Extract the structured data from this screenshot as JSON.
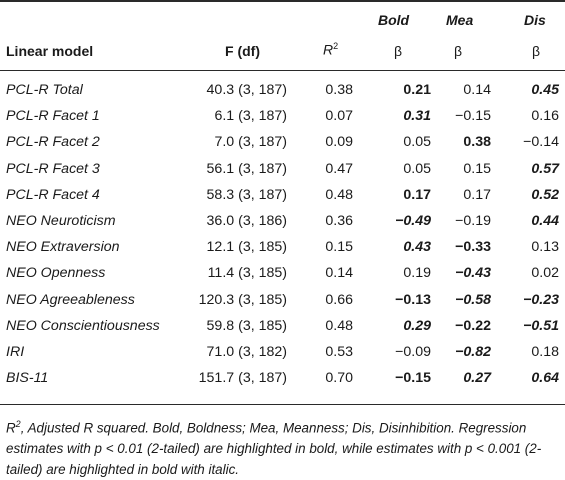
{
  "header": {
    "model": "Linear model",
    "f": "F (df)",
    "r2": "R",
    "r2_sup": "2",
    "bold": "Bold",
    "mea": "Mea",
    "dis": "Dis",
    "beta": "β"
  },
  "rows": [
    {
      "model": "PCL-R Total",
      "f": "40.3 (3, 187)",
      "r2": "0.38",
      "bold": "0.21",
      "bold_style": "b",
      "mea": "0.14",
      "mea_style": "",
      "dis": "0.45",
      "dis_style": "bi"
    },
    {
      "model": "PCL-R Facet 1",
      "f": "6.1 (3, 187)",
      "r2": "0.07",
      "bold": "0.31",
      "bold_style": "bi",
      "mea": "−0.15",
      "mea_style": "",
      "dis": "0.16",
      "dis_style": ""
    },
    {
      "model": "PCL-R Facet 2",
      "f": "7.0 (3, 187)",
      "r2": "0.09",
      "bold": "0.05",
      "bold_style": "",
      "mea": "0.38",
      "mea_style": "b",
      "dis": "−0.14",
      "dis_style": ""
    },
    {
      "model": "PCL-R Facet 3",
      "f": "56.1 (3, 187)",
      "r2": "0.47",
      "bold": "0.05",
      "bold_style": "",
      "mea": "0.15",
      "mea_style": "",
      "dis": "0.57",
      "dis_style": "bi"
    },
    {
      "model": "PCL-R Facet 4",
      "f": "58.3 (3, 187)",
      "r2": "0.48",
      "bold": "0.17",
      "bold_style": "b",
      "mea": "0.17",
      "mea_style": "",
      "dis": "0.52",
      "dis_style": "bi"
    },
    {
      "model": "NEO Neuroticism",
      "f": "36.0 (3, 186)",
      "r2": "0.36",
      "bold": "−0.49",
      "bold_style": "bi",
      "mea": "−0.19",
      "mea_style": "",
      "dis": "0.44",
      "dis_style": "bi"
    },
    {
      "model": "NEO Extraversion",
      "f": "12.1 (3, 185)",
      "r2": "0.15",
      "bold": "0.43",
      "bold_style": "bi",
      "mea": "−0.33",
      "mea_style": "b",
      "dis": "0.13",
      "dis_style": ""
    },
    {
      "model": "NEO Openness",
      "f": "11.4 (3, 185)",
      "r2": "0.14",
      "bold": "0.19",
      "bold_style": "",
      "mea": "−0.43",
      "mea_style": "bi",
      "dis": "0.02",
      "dis_style": ""
    },
    {
      "model": "NEO Agreeableness",
      "f": "120.3 (3, 185)",
      "r2": "0.66",
      "bold": "−0.13",
      "bold_style": "b",
      "mea": "−0.58",
      "mea_style": "bi",
      "dis": "−0.23",
      "dis_style": "bi"
    },
    {
      "model": "NEO Conscientiousness",
      "f": "59.8 (3, 185)",
      "r2": "0.48",
      "bold": "0.29",
      "bold_style": "bi",
      "mea": "−0.22",
      "mea_style": "b",
      "dis": "−0.51",
      "dis_style": "bi"
    },
    {
      "model": "IRI",
      "f": "71.0 (3, 182)",
      "r2": "0.53",
      "bold": "−0.09",
      "bold_style": "",
      "mea": "−0.82",
      "mea_style": "bi",
      "dis": "0.18",
      "dis_style": ""
    },
    {
      "model": "BIS-11",
      "f": "151.7 (3, 187)",
      "r2": "0.70",
      "bold": "−0.15",
      "bold_style": "b",
      "mea": "0.27",
      "mea_style": "bi",
      "dis": "0.64",
      "dis_style": "bi"
    }
  ],
  "footnote": {
    "r": "R",
    "sup": "2",
    "text": ", Adjusted R squared. Bold, Boldness; Mea, Meanness; Dis, Disinhibition. Regression estimates with p < 0.01 (2-tailed) are highlighted in bold, while estimates with p < 0.001 (2-tailed) are highlighted in bold with italic."
  }
}
